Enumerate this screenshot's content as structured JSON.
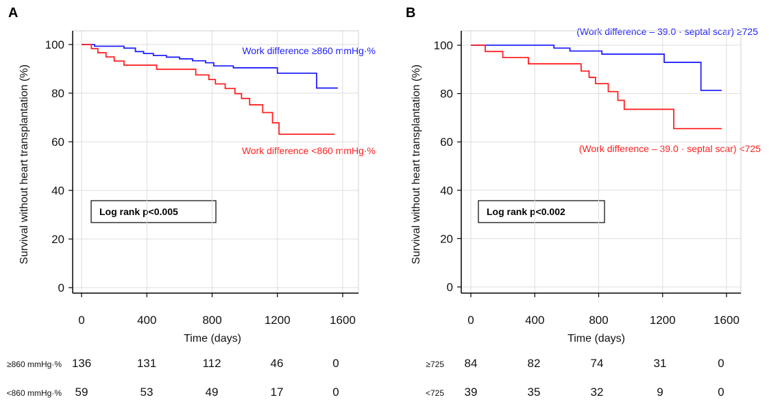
{
  "chart_data": [
    {
      "panel": "A",
      "type": "line",
      "xlabel": "Time (days)",
      "ylabel": "Survival without heart transplantation (%)",
      "xlim": [
        0,
        1600
      ],
      "ylim": [
        0,
        100
      ],
      "xticks": [
        0,
        400,
        800,
        1200,
        1600
      ],
      "yticks": [
        0,
        20,
        40,
        60,
        80,
        100
      ],
      "grid": true,
      "annotation": "Log rank p<0.005",
      "series": [
        {
          "name": "Work difference ≥860 mmHg·%",
          "color": "#2020ff",
          "x": [
            0,
            80,
            260,
            330,
            380,
            440,
            520,
            600,
            680,
            760,
            810,
            930,
            1200,
            1440,
            1570
          ],
          "y": [
            100,
            99.3,
            98.5,
            97.1,
            96.3,
            95.5,
            94.8,
            94.1,
            93.3,
            92.5,
            91.2,
            90.4,
            88.2,
            82.1,
            82.1
          ]
        },
        {
          "name": "Work difference <860 mmHg·%",
          "color": "#ff2020",
          "x": [
            0,
            60,
            100,
            150,
            200,
            260,
            320,
            460,
            700,
            780,
            820,
            880,
            940,
            980,
            1030,
            1110,
            1170,
            1210,
            1270,
            1550
          ],
          "y": [
            100,
            98.3,
            96.6,
            94.9,
            93.2,
            91.5,
            91.5,
            89.8,
            87.5,
            85.6,
            83.8,
            81.9,
            79.8,
            77.8,
            75.2,
            72.0,
            67.8,
            63.1,
            63.1,
            63.1
          ]
        }
      ],
      "risk_table": {
        "rows": [
          {
            "label": "≥860 mmHg·%",
            "values": [
              "136",
              "131",
              "112",
              "46",
              "0"
            ]
          },
          {
            "label": "<860 mmHg·%",
            "values": [
              "59",
              "53",
              "49",
              "17",
              "0"
            ]
          }
        ]
      }
    },
    {
      "panel": "B",
      "type": "line",
      "xlabel": "Time (days)",
      "ylabel": "Survival without heart transplantation (%)",
      "xlim": [
        0,
        1600
      ],
      "ylim": [
        0,
        100
      ],
      "xticks": [
        0,
        400,
        800,
        1200,
        1600
      ],
      "yticks": [
        0,
        20,
        40,
        60,
        80,
        100
      ],
      "grid": true,
      "annotation": "Log rank p<0.002",
      "series": [
        {
          "name": "(Work difference – 39.0 · septal scar) ≥725",
          "color": "#2020ff",
          "x": [
            0,
            520,
            620,
            820,
            1210,
            1440,
            1570
          ],
          "y": [
            100,
            98.8,
            97.6,
            96.3,
            92.9,
            81.3,
            81.3
          ]
        },
        {
          "name": "(Work difference – 39.0 · septal scar) <725",
          "color": "#ff2020",
          "x": [
            0,
            90,
            200,
            360,
            690,
            740,
            780,
            860,
            920,
            960,
            1010,
            1270,
            1570
          ],
          "y": [
            100,
            97.4,
            94.9,
            92.3,
            89.3,
            86.7,
            84.1,
            80.8,
            77.2,
            73.5,
            73.5,
            65.5,
            65.5
          ]
        }
      ],
      "risk_table": {
        "rows": [
          {
            "label": "≥725",
            "values": [
              "84",
              "82",
              "74",
              "31",
              "0"
            ]
          },
          {
            "label": "<725",
            "values": [
              "39",
              "35",
              "32",
              "9",
              "0"
            ]
          }
        ]
      }
    }
  ]
}
